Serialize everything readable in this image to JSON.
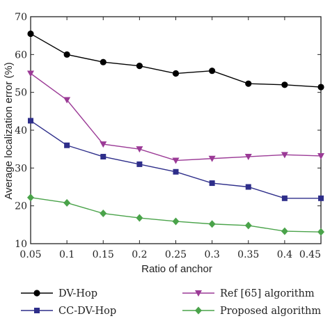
{
  "chart_data": {
    "type": "line",
    "title": "",
    "xlabel": "Ratio of anchor",
    "ylabel": "Average localization error (%)",
    "xlim": [
      0.05,
      0.45
    ],
    "ylim": [
      10,
      70
    ],
    "x": [
      0.05,
      0.1,
      0.15,
      0.2,
      0.25,
      0.3,
      0.35,
      0.4,
      0.45
    ],
    "x_ticks": [
      "0.05",
      "0.1",
      "0.15",
      "0.2",
      "0.25",
      "0.3",
      "0.35",
      "0.4",
      "0.45"
    ],
    "y_ticks": [
      "10",
      "20",
      "30",
      "40",
      "50",
      "60",
      "70"
    ],
    "grid": false,
    "legend_position": "bottom",
    "series": [
      {
        "name": "DV-Hop",
        "color": "#000000",
        "marker": "circle",
        "values": [
          65.5,
          60,
          58,
          57,
          55,
          55.7,
          52.3,
          52,
          51.4
        ]
      },
      {
        "name": "Ref [65] algorithm",
        "color": "#9b3a96",
        "marker": "triangle-down",
        "values": [
          55,
          48,
          36.3,
          35,
          32,
          32.5,
          33,
          33.5,
          33.2
        ]
      },
      {
        "name": "CC-DV-Hop",
        "color": "#2e2e8a",
        "marker": "square",
        "values": [
          42.5,
          36,
          33,
          31,
          29,
          26,
          25,
          22,
          22
        ]
      },
      {
        "name": "Proposed algorithm",
        "color": "#4aa34a",
        "marker": "diamond",
        "values": [
          22.2,
          20.8,
          18,
          16.8,
          15.9,
          15.2,
          14.8,
          13.3,
          13.1
        ]
      }
    ]
  }
}
